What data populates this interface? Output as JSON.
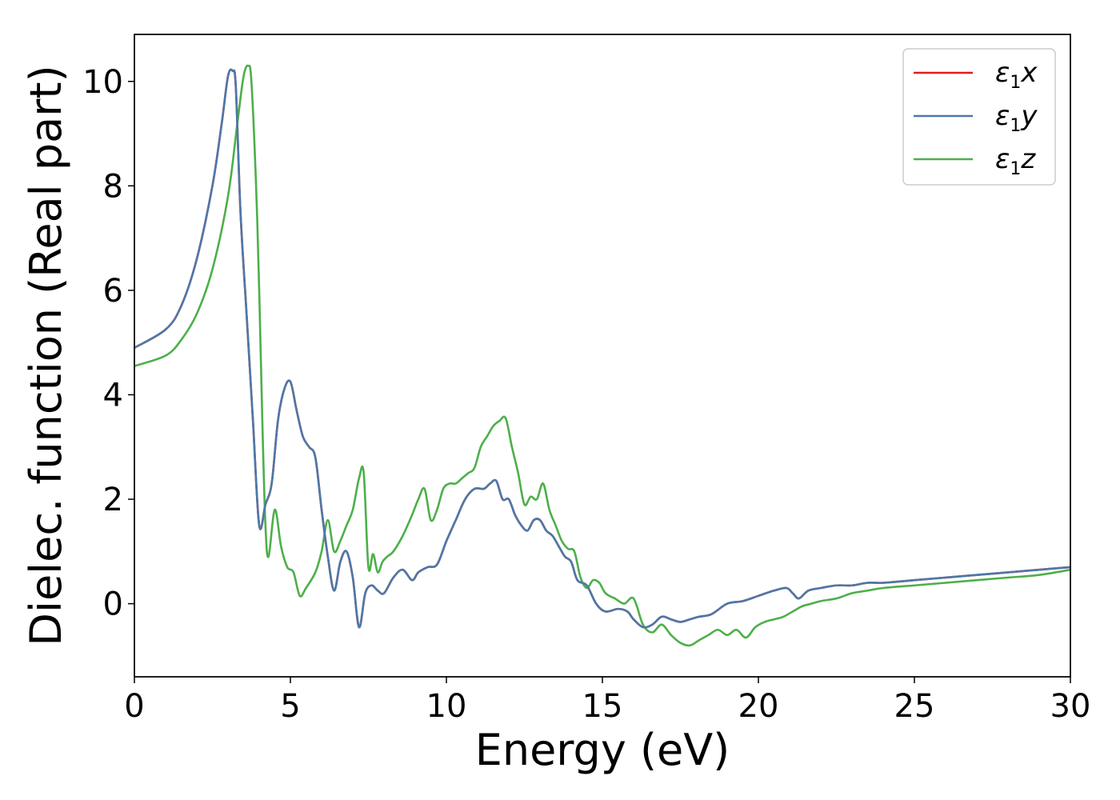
{
  "chart_data": {
    "type": "line",
    "xlabel": "Energy (eV)",
    "ylabel": "Dielec. function (Real part)",
    "xlim": [
      0,
      30
    ],
    "ylim": [
      -1.4,
      10.9
    ],
    "xticks": [
      0,
      5,
      10,
      15,
      20,
      25,
      30
    ],
    "yticks": [
      0,
      2,
      4,
      6,
      8,
      10
    ],
    "grid": false,
    "legend_position": "top-right",
    "series": [
      {
        "name": "ε₁x",
        "symbol": "ε",
        "subscript": "1",
        "axis": "x",
        "color": "#e41a1c",
        "x": [
          0,
          1,
          1.5,
          2,
          2.5,
          2.8,
          3.0,
          3.15,
          3.25,
          3.4,
          3.6,
          3.8,
          4.0,
          4.2,
          4.4,
          4.6,
          4.8,
          5.0,
          5.2,
          5.4,
          5.6,
          5.8,
          6.0,
          6.2,
          6.4,
          6.6,
          6.8,
          7.0,
          7.2,
          7.4,
          7.6,
          7.8,
          8.0,
          8.3,
          8.6,
          8.9,
          9.1,
          9.4,
          9.7,
          10.0,
          10.3,
          10.6,
          10.9,
          11.2,
          11.4,
          11.6,
          11.8,
          12.0,
          12.2,
          12.4,
          12.6,
          12.8,
          13.0,
          13.2,
          13.4,
          13.6,
          13.8,
          14.0,
          14.2,
          14.5,
          14.8,
          15.1,
          15.5,
          15.8,
          16.0,
          16.3,
          16.6,
          16.9,
          17.2,
          17.5,
          17.8,
          18.1,
          18.5,
          19.0,
          19.5,
          20.0,
          20.5,
          20.9,
          21.1,
          21.3,
          21.6,
          22.0,
          22.5,
          23.0,
          23.5,
          24.0,
          25.0,
          26.0,
          27.0,
          28.0,
          29.0,
          30.0
        ],
        "y": [
          4.9,
          5.25,
          5.7,
          6.6,
          8.0,
          9.2,
          10.1,
          10.2,
          9.9,
          7.5,
          5.5,
          3.5,
          1.5,
          1.9,
          2.3,
          3.5,
          4.1,
          4.25,
          3.7,
          3.2,
          3.0,
          2.8,
          1.8,
          0.9,
          0.25,
          0.8,
          1.0,
          0.5,
          -0.45,
          0.2,
          0.35,
          0.25,
          0.2,
          0.5,
          0.65,
          0.45,
          0.6,
          0.7,
          0.75,
          1.2,
          1.6,
          2.0,
          2.2,
          2.2,
          2.3,
          2.35,
          2.0,
          2.0,
          1.7,
          1.5,
          1.4,
          1.6,
          1.6,
          1.4,
          1.3,
          1.1,
          0.9,
          0.8,
          0.45,
          0.35,
          0.0,
          -0.15,
          -0.1,
          -0.15,
          -0.3,
          -0.45,
          -0.4,
          -0.25,
          -0.3,
          -0.35,
          -0.3,
          -0.25,
          -0.2,
          0.0,
          0.05,
          0.15,
          0.25,
          0.3,
          0.2,
          0.1,
          0.25,
          0.3,
          0.35,
          0.35,
          0.4,
          0.4,
          0.45,
          0.5,
          0.55,
          0.6,
          0.65,
          0.7
        ]
      },
      {
        "name": "ε₁y",
        "symbol": "ε",
        "subscript": "1",
        "axis": "y",
        "color": "#4c78a8",
        "x": [
          0,
          1,
          1.5,
          2,
          2.5,
          2.8,
          3.0,
          3.15,
          3.25,
          3.4,
          3.6,
          3.8,
          4.0,
          4.2,
          4.4,
          4.6,
          4.8,
          5.0,
          5.2,
          5.4,
          5.6,
          5.8,
          6.0,
          6.2,
          6.4,
          6.6,
          6.8,
          7.0,
          7.2,
          7.4,
          7.6,
          7.8,
          8.0,
          8.3,
          8.6,
          8.9,
          9.1,
          9.4,
          9.7,
          10.0,
          10.3,
          10.6,
          10.9,
          11.2,
          11.4,
          11.6,
          11.8,
          12.0,
          12.2,
          12.4,
          12.6,
          12.8,
          13.0,
          13.2,
          13.4,
          13.6,
          13.8,
          14.0,
          14.2,
          14.5,
          14.8,
          15.1,
          15.5,
          15.8,
          16.0,
          16.3,
          16.6,
          16.9,
          17.2,
          17.5,
          17.8,
          18.1,
          18.5,
          19.0,
          19.5,
          20.0,
          20.5,
          20.9,
          21.1,
          21.3,
          21.6,
          22.0,
          22.5,
          23.0,
          23.5,
          24.0,
          25.0,
          26.0,
          27.0,
          28.0,
          29.0,
          30.0
        ],
        "y": [
          4.9,
          5.25,
          5.7,
          6.6,
          8.0,
          9.2,
          10.1,
          10.2,
          9.9,
          7.5,
          5.5,
          3.5,
          1.5,
          1.9,
          2.3,
          3.5,
          4.1,
          4.25,
          3.7,
          3.2,
          3.0,
          2.8,
          1.8,
          0.9,
          0.25,
          0.8,
          1.0,
          0.5,
          -0.45,
          0.2,
          0.35,
          0.25,
          0.2,
          0.5,
          0.65,
          0.45,
          0.6,
          0.7,
          0.75,
          1.2,
          1.6,
          2.0,
          2.2,
          2.2,
          2.3,
          2.35,
          2.0,
          2.0,
          1.7,
          1.5,
          1.4,
          1.6,
          1.6,
          1.4,
          1.3,
          1.1,
          0.9,
          0.8,
          0.45,
          0.35,
          0.0,
          -0.15,
          -0.1,
          -0.15,
          -0.3,
          -0.45,
          -0.4,
          -0.25,
          -0.3,
          -0.35,
          -0.3,
          -0.25,
          -0.2,
          0.0,
          0.05,
          0.15,
          0.25,
          0.3,
          0.2,
          0.1,
          0.25,
          0.3,
          0.35,
          0.35,
          0.4,
          0.4,
          0.45,
          0.5,
          0.55,
          0.6,
          0.65,
          0.7
        ]
      },
      {
        "name": "ε₁z",
        "symbol": "ε",
        "subscript": "1",
        "axis": "z",
        "color": "#4daf4a",
        "x": [
          0,
          1,
          1.5,
          2,
          2.5,
          3.0,
          3.3,
          3.5,
          3.65,
          3.75,
          3.9,
          4.0,
          4.1,
          4.2,
          4.3,
          4.5,
          4.7,
          4.9,
          5.1,
          5.3,
          5.5,
          5.8,
          6.0,
          6.2,
          6.4,
          6.6,
          6.8,
          7.0,
          7.2,
          7.35,
          7.5,
          7.65,
          7.8,
          7.95,
          8.1,
          8.3,
          8.6,
          8.9,
          9.1,
          9.3,
          9.5,
          9.7,
          9.9,
          10.1,
          10.3,
          10.5,
          10.7,
          10.9,
          11.1,
          11.3,
          11.5,
          11.7,
          11.9,
          12.1,
          12.3,
          12.5,
          12.7,
          12.9,
          13.1,
          13.3,
          13.5,
          13.7,
          13.9,
          14.1,
          14.3,
          14.5,
          14.7,
          14.9,
          15.1,
          15.4,
          15.7,
          16.0,
          16.3,
          16.6,
          16.9,
          17.2,
          17.5,
          17.8,
          18.1,
          18.4,
          18.7,
          19.0,
          19.3,
          19.6,
          19.9,
          20.2,
          20.5,
          20.8,
          21.1,
          21.4,
          21.7,
          22.0,
          22.5,
          23.0,
          23.5,
          24.0,
          25.0,
          26.0,
          27.0,
          28.0,
          29.0,
          30.0
        ],
        "y": [
          4.55,
          4.75,
          5.05,
          5.55,
          6.4,
          7.8,
          9.2,
          10.1,
          10.3,
          10.0,
          8.0,
          6.0,
          3.5,
          1.5,
          0.9,
          1.8,
          1.1,
          0.7,
          0.6,
          0.15,
          0.3,
          0.6,
          1.0,
          1.6,
          1.0,
          1.2,
          1.5,
          1.8,
          2.4,
          2.5,
          0.7,
          0.95,
          0.6,
          0.8,
          0.9,
          1.0,
          1.3,
          1.7,
          2.0,
          2.2,
          1.6,
          1.8,
          2.2,
          2.3,
          2.3,
          2.4,
          2.5,
          2.6,
          3.0,
          3.2,
          3.4,
          3.5,
          3.55,
          3.0,
          2.5,
          1.9,
          2.05,
          2.0,
          2.3,
          1.8,
          1.5,
          1.2,
          1.05,
          1.0,
          0.5,
          0.3,
          0.45,
          0.4,
          0.2,
          0.1,
          0.0,
          0.1,
          -0.4,
          -0.55,
          -0.4,
          -0.6,
          -0.75,
          -0.8,
          -0.7,
          -0.6,
          -0.5,
          -0.6,
          -0.5,
          -0.65,
          -0.45,
          -0.35,
          -0.3,
          -0.25,
          -0.15,
          -0.05,
          0.0,
          0.05,
          0.1,
          0.2,
          0.25,
          0.3,
          0.35,
          0.4,
          0.45,
          0.5,
          0.55,
          0.65
        ]
      }
    ]
  }
}
